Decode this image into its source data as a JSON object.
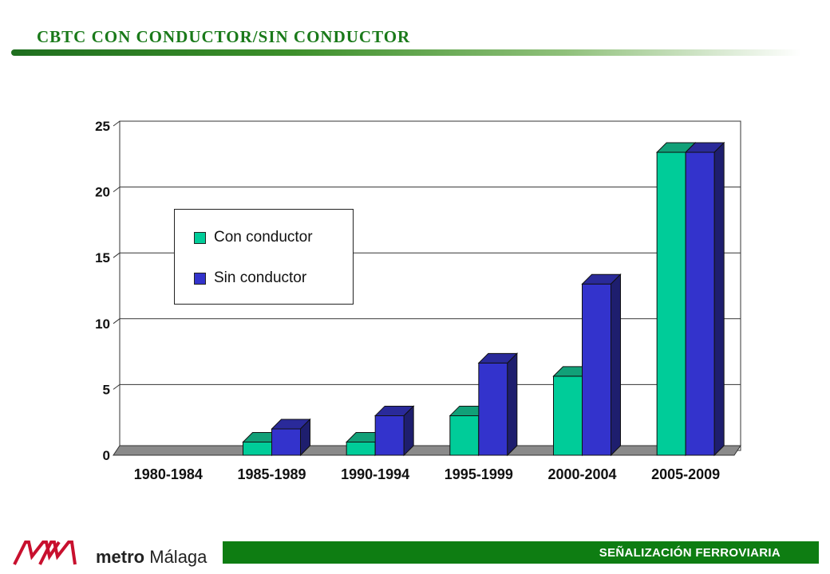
{
  "slide": {
    "title": "CBTC CON CONDUCTOR/SIN CONDUCTOR",
    "brand_color": "#1a7a1a"
  },
  "chart_data": {
    "type": "bar",
    "categories": [
      "1980-1984",
      "1985-1989",
      "1990-1994",
      "1995-1999",
      "2000-2004",
      "2005-2009"
    ],
    "series": [
      {
        "name": "Con conductor",
        "values": [
          0,
          1,
          1,
          3,
          6,
          23
        ],
        "color": "#00cc99"
      },
      {
        "name": "Sin conductor",
        "values": [
          0,
          2,
          3,
          7,
          13,
          23
        ],
        "color": "#3333cc"
      }
    ],
    "yticks": [
      "0",
      "5",
      "10",
      "15",
      "20",
      "25"
    ],
    "ylim": [
      0,
      25
    ],
    "grid": true,
    "legend_position": "upper-left",
    "style": "3d-clustered"
  },
  "footer": {
    "logo_mark": "MM",
    "logo_word_bold": "metro",
    "logo_word": "Málaga",
    "section_label": "SEÑALIZACIÓN FERROVIARIA",
    "bar_color": "#0e7d12"
  }
}
